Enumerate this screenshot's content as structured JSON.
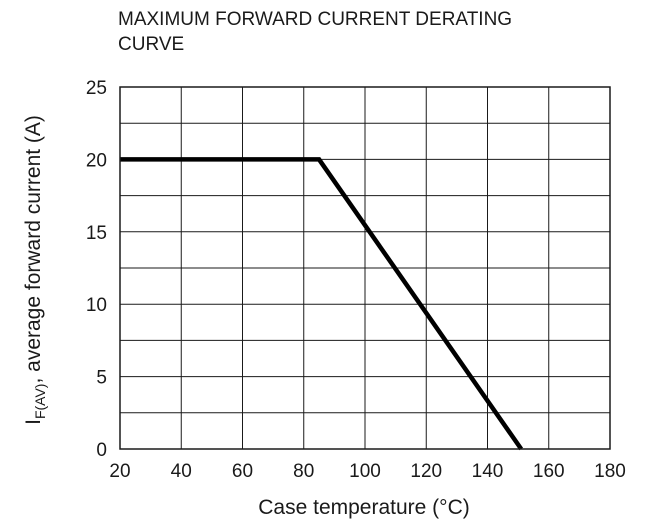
{
  "chart_data": {
    "type": "line",
    "title_lines": [
      "MAXIMUM FORWARD CURRENT DERATING",
      "CURVE"
    ],
    "xlabel": "Case temperature (°C)",
    "ylabel": {
      "prefix": "I",
      "subscript": "F(AV)",
      "suffix": ", average forward current (A)"
    },
    "xlim": [
      20,
      180
    ],
    "ylim": [
      0,
      25
    ],
    "x_ticks": [
      20,
      40,
      60,
      80,
      100,
      120,
      140,
      160,
      180
    ],
    "y_ticks": [
      0,
      5,
      10,
      15,
      20,
      25
    ],
    "x_minor_grid_step": 20,
    "y_minor_grid_step": 2.5,
    "grid": true,
    "line_color": "#000000",
    "series": [
      {
        "x": [
          20,
          85,
          151
        ],
        "y": [
          20,
          20,
          0
        ]
      }
    ]
  }
}
